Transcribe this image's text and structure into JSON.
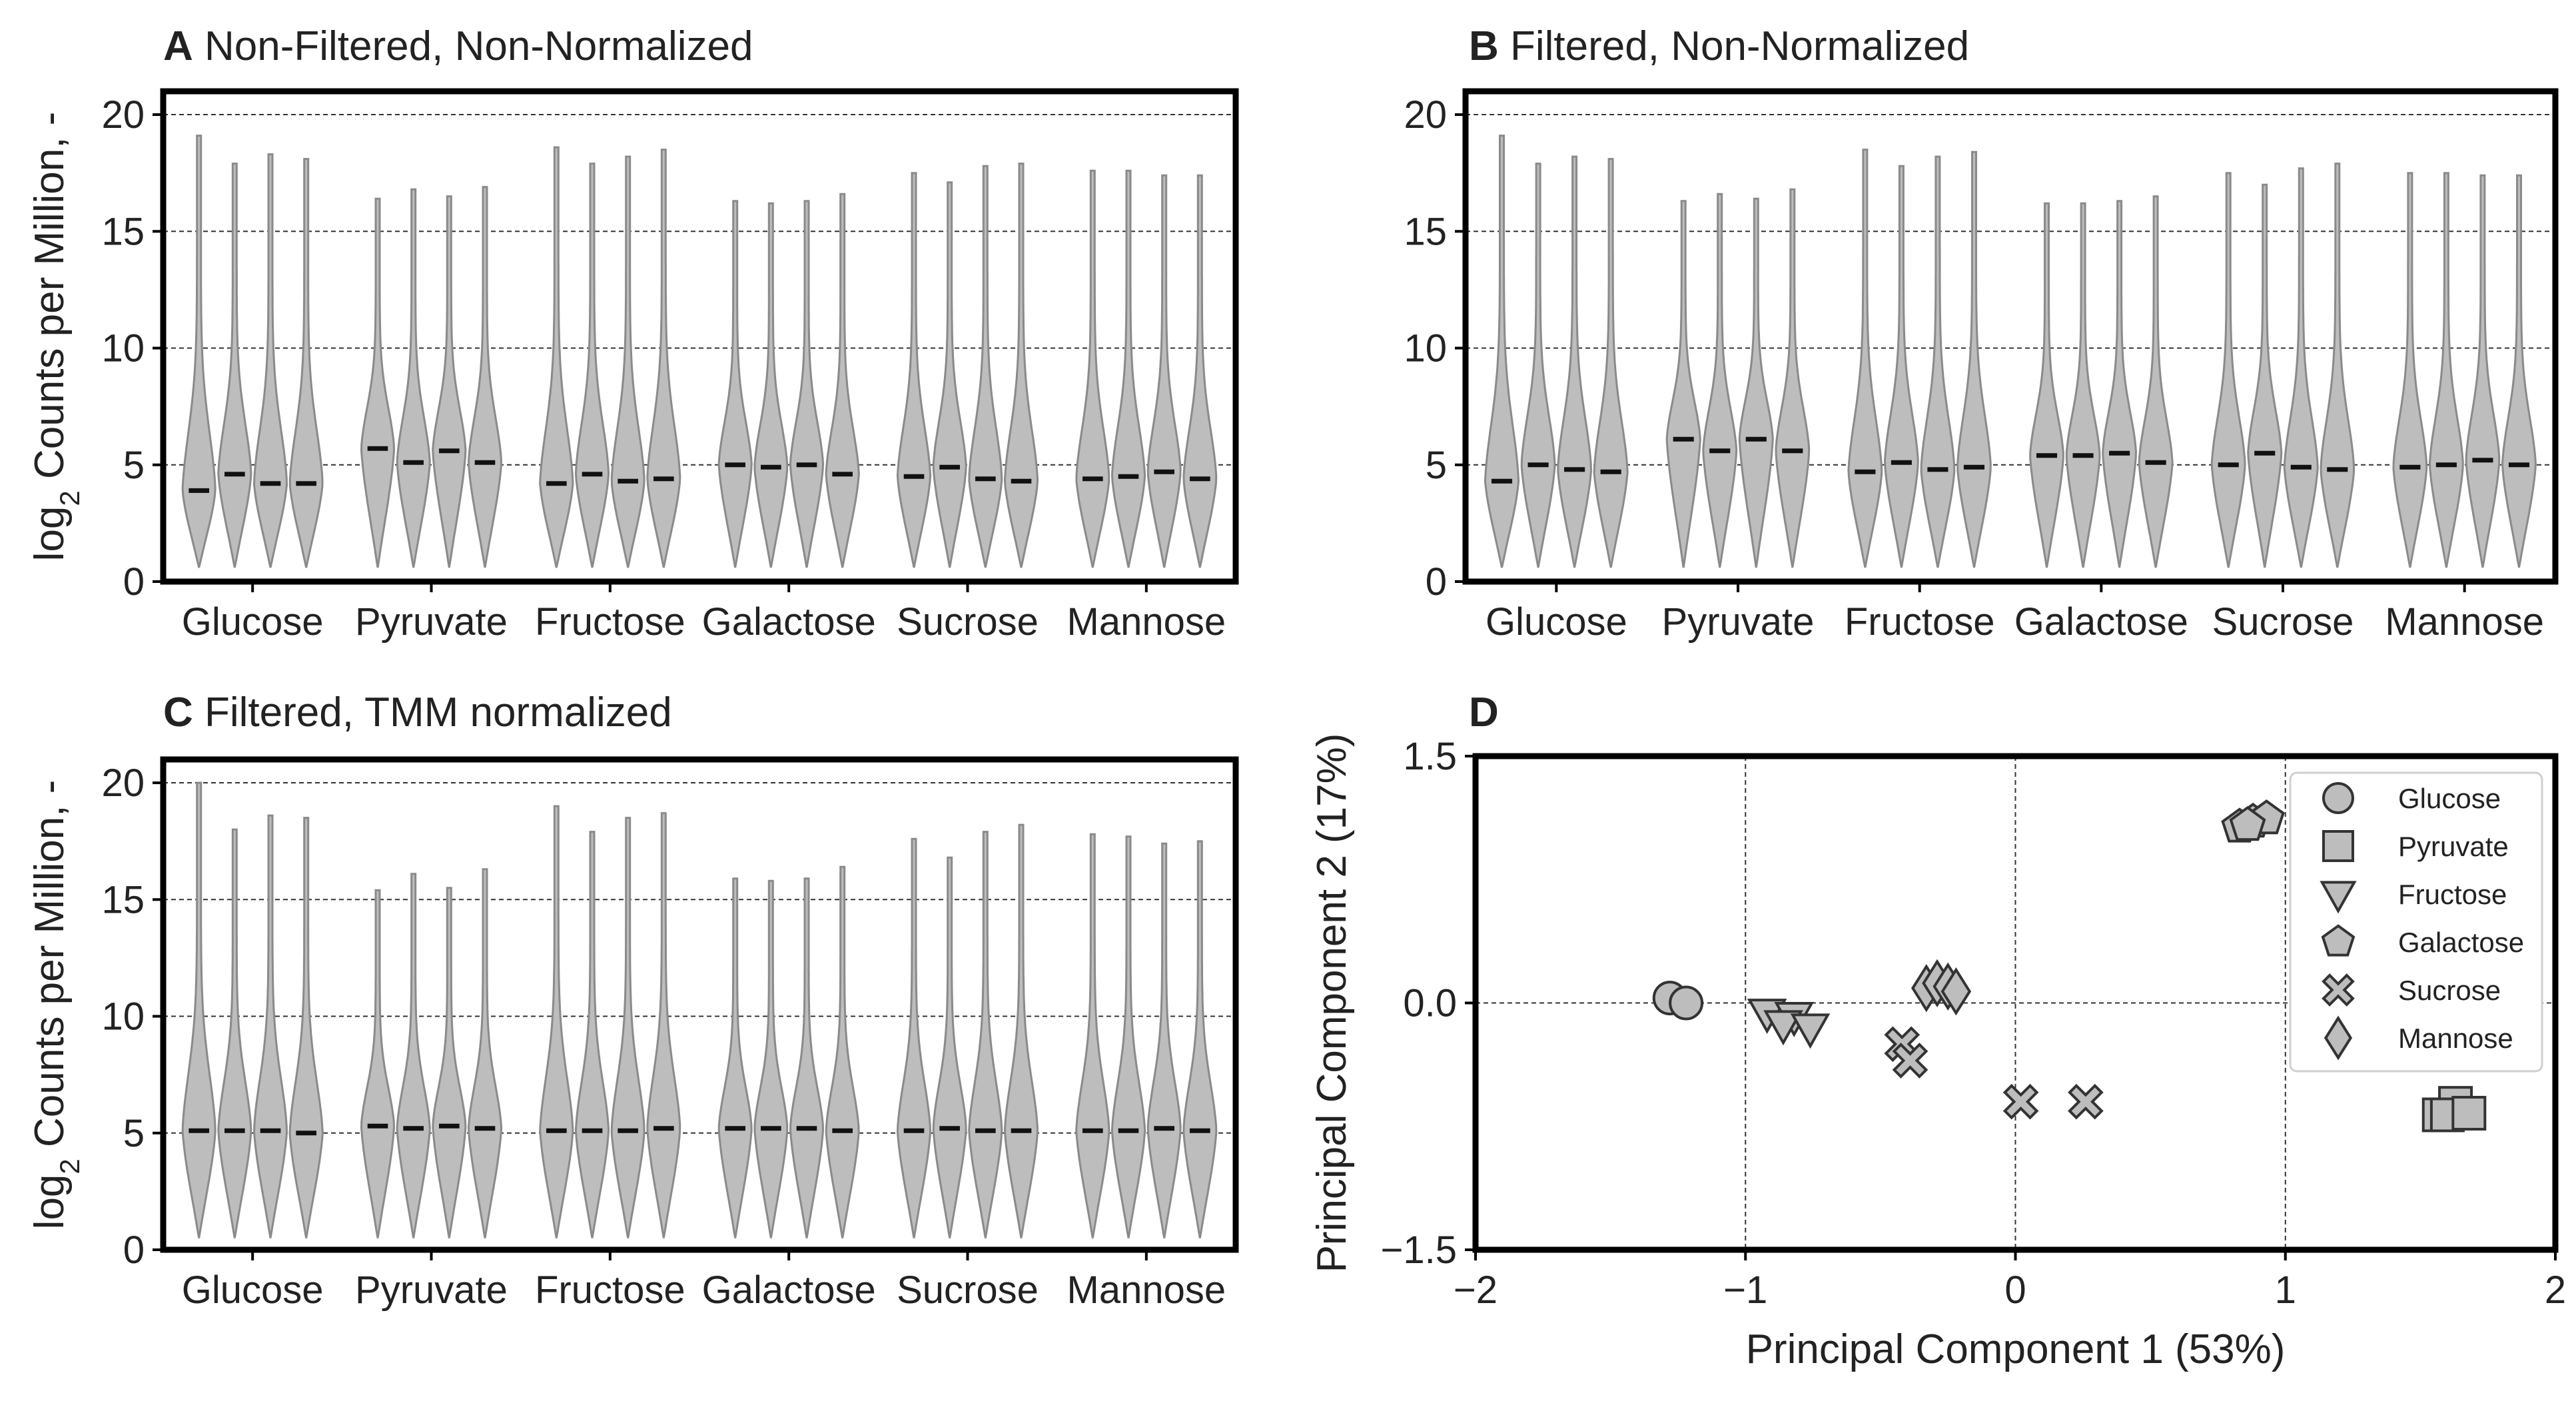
{
  "colors": {
    "violin_fill": "#bdbdbd",
    "violin_stroke": "#8a8a8a",
    "median": "#111111",
    "marker_fill": "#bdbdbd",
    "marker_stroke": "#333333",
    "axes": "#000000",
    "grid": "#333333"
  },
  "chart_data": [
    {
      "panel": "A",
      "type": "violin",
      "letter": "A",
      "title": "Non-Filtered, Non-Normalized",
      "ylabel_prefix": "log",
      "ylabel_sub": "2",
      "ylabel_suffix": " Counts per Million, -",
      "ylim": [
        0,
        21
      ],
      "yticks": [
        "0",
        "5",
        "10",
        "15",
        "20"
      ],
      "grid": "y-dashed",
      "categories": [
        "Glucose",
        "Pyruvate",
        "Fructose",
        "Galactose",
        "Sucrose",
        "Mannose"
      ],
      "replicates_per_category": 4,
      "medians": [
        [
          3.9,
          4.6,
          4.2,
          4.2
        ],
        [
          5.7,
          5.1,
          5.6,
          5.1
        ],
        [
          4.2,
          4.6,
          4.3,
          4.4
        ],
        [
          5.0,
          4.9,
          5.0,
          4.6
        ],
        [
          4.5,
          4.9,
          4.4,
          4.3
        ],
        [
          4.4,
          4.5,
          4.7,
          4.4
        ]
      ],
      "maxima": [
        [
          19.1,
          17.9,
          18.3,
          18.1
        ],
        [
          16.4,
          16.8,
          16.5,
          16.9
        ],
        [
          18.6,
          17.9,
          18.2,
          18.5
        ],
        [
          16.3,
          16.2,
          16.3,
          16.6
        ],
        [
          17.5,
          17.1,
          17.8,
          17.9
        ],
        [
          17.6,
          17.6,
          17.4,
          17.4
        ]
      ],
      "minimum": 0.6
    },
    {
      "panel": "B",
      "type": "violin",
      "letter": "B",
      "title": "Filtered, Non-Normalized",
      "ylim": [
        0,
        21
      ],
      "yticks": [
        "0",
        "5",
        "10",
        "15",
        "20"
      ],
      "grid": "y-dashed",
      "categories": [
        "Glucose",
        "Pyruvate",
        "Fructose",
        "Galactose",
        "Sucrose",
        "Mannose"
      ],
      "replicates_per_category": 4,
      "medians": [
        [
          4.3,
          5.0,
          4.8,
          4.7
        ],
        [
          6.1,
          5.6,
          6.1,
          5.6
        ],
        [
          4.7,
          5.1,
          4.8,
          4.9
        ],
        [
          5.4,
          5.4,
          5.5,
          5.1
        ],
        [
          5.0,
          5.5,
          4.9,
          4.8
        ],
        [
          4.9,
          5.0,
          5.2,
          5.0
        ]
      ],
      "maxima": [
        [
          19.1,
          17.9,
          18.2,
          18.1
        ],
        [
          16.3,
          16.6,
          16.4,
          16.8
        ],
        [
          18.5,
          17.8,
          18.2,
          18.4
        ],
        [
          16.2,
          16.2,
          16.3,
          16.5
        ],
        [
          17.5,
          17.0,
          17.7,
          17.9
        ],
        [
          17.5,
          17.5,
          17.4,
          17.4
        ]
      ],
      "minimum": 0.6
    },
    {
      "panel": "C",
      "type": "violin",
      "letter": "C",
      "title": "Filtered, TMM normalized",
      "ylabel_prefix": "log",
      "ylabel_sub": "2",
      "ylabel_suffix": " Counts per Million, -",
      "ylim": [
        0,
        21
      ],
      "yticks": [
        "0",
        "5",
        "10",
        "15",
        "20"
      ],
      "grid": "y-dashed",
      "categories": [
        "Glucose",
        "Pyruvate",
        "Fructose",
        "Galactose",
        "Sucrose",
        "Mannose"
      ],
      "replicates_per_category": 4,
      "medians": [
        [
          5.1,
          5.1,
          5.1,
          5.0
        ],
        [
          5.3,
          5.2,
          5.3,
          5.2
        ],
        [
          5.1,
          5.1,
          5.1,
          5.2
        ],
        [
          5.2,
          5.2,
          5.2,
          5.1
        ],
        [
          5.1,
          5.2,
          5.1,
          5.1
        ],
        [
          5.1,
          5.1,
          5.2,
          5.1
        ]
      ],
      "maxima": [
        [
          20.0,
          18.0,
          18.6,
          18.5
        ],
        [
          15.4,
          16.1,
          15.5,
          16.3
        ],
        [
          19.0,
          17.9,
          18.5,
          18.7
        ],
        [
          15.9,
          15.8,
          15.9,
          16.4
        ],
        [
          17.6,
          16.8,
          17.9,
          18.2
        ],
        [
          17.8,
          17.7,
          17.4,
          17.5
        ]
      ],
      "minimum": 0.5
    },
    {
      "panel": "D",
      "type": "scatter",
      "letter": "D",
      "xlabel": "Principal Component 1 (53%)",
      "ylabel": "Principal Component 2 (17%)",
      "xlim": [
        -2,
        2
      ],
      "ylim": [
        -1.5,
        1.5
      ],
      "xticks": [
        {
          "value": -2,
          "label": "−2"
        },
        {
          "value": -1,
          "label": "−1"
        },
        {
          "value": 0,
          "label": "0"
        },
        {
          "value": 1,
          "label": "1"
        },
        {
          "value": 2,
          "label": "2"
        }
      ],
      "yticks": [
        {
          "value": -1.5,
          "label": "−1.5"
        },
        {
          "value": 0,
          "label": "0.0"
        },
        {
          "value": 1.5,
          "label": "1.5"
        }
      ],
      "grid": "dashed",
      "legend_position": "upper-right",
      "series": [
        {
          "name": "Glucose",
          "marker": "circle",
          "points": [
            [
              -1.28,
              0.03
            ],
            [
              -1.22,
              0.0
            ]
          ]
        },
        {
          "name": "Pyruvate",
          "marker": "square",
          "points": [
            [
              1.57,
              -0.68
            ],
            [
              1.63,
              -0.61
            ],
            [
              1.6,
              -0.68
            ],
            [
              1.68,
              -0.67
            ]
          ]
        },
        {
          "name": "Fructose",
          "marker": "triangle-down",
          "points": [
            [
              -0.92,
              -0.06
            ],
            [
              -0.82,
              -0.08
            ],
            [
              -0.86,
              -0.13
            ],
            [
              -0.76,
              -0.15
            ]
          ]
        },
        {
          "name": "Galactose",
          "marker": "pentagon",
          "points": [
            [
              0.83,
              1.07
            ],
            [
              0.88,
              1.1
            ],
            [
              0.93,
              1.12
            ],
            [
              0.86,
              1.08
            ]
          ]
        },
        {
          "name": "Sucrose",
          "marker": "x",
          "points": [
            [
              -0.42,
              -0.25
            ],
            [
              -0.39,
              -0.35
            ],
            [
              0.02,
              -0.6
            ],
            [
              0.26,
              -0.6
            ]
          ]
        },
        {
          "name": "Mannose",
          "marker": "diamond",
          "points": [
            [
              -0.33,
              0.09
            ],
            [
              -0.29,
              0.12
            ],
            [
              -0.25,
              0.1
            ],
            [
              -0.22,
              0.07
            ]
          ]
        }
      ]
    }
  ]
}
